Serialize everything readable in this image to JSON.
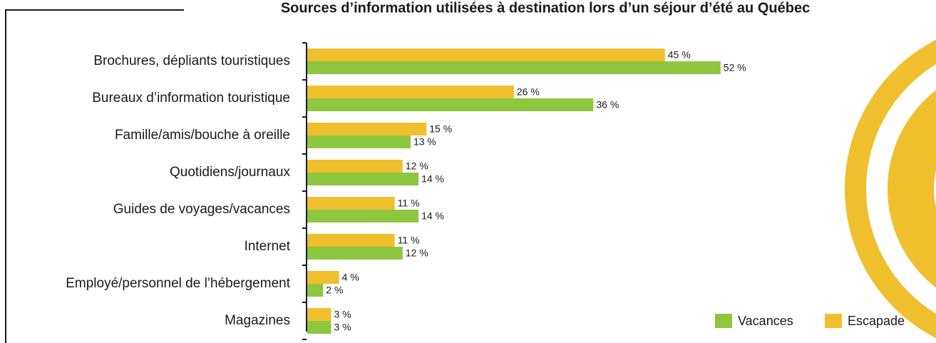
{
  "chart_data": {
    "type": "bar",
    "orientation": "horizontal",
    "title": "Sources d’information utilisées à destination lors d’un séjour d’été au Québec",
    "categories": [
      "Brochures, dépliants touristiques",
      "Bureaux d’information touristique",
      "Famille/amis/bouche à oreille",
      "Quotidiens/journaux",
      "Guides de voyages/vacances",
      "Internet",
      "Employé/personnel de l’hébergement",
      "Magazines"
    ],
    "series": [
      {
        "name": "Escapade",
        "color": "#f0bf2e",
        "values": [
          45,
          26,
          15,
          12,
          11,
          11,
          4,
          3
        ],
        "value_labels": [
          "45 %",
          "26 %",
          "15 %",
          "12 %",
          "11 %",
          "11 %",
          "4 %",
          "3 %"
        ]
      },
      {
        "name": "Vacances",
        "color": "#8dc63f",
        "values": [
          52,
          36,
          13,
          14,
          14,
          12,
          2,
          3
        ],
        "value_labels": [
          "52 %",
          "36 %",
          "13 %",
          "14 %",
          "14 %",
          "12 %",
          "2 %",
          "3 %"
        ]
      }
    ]
  }
}
